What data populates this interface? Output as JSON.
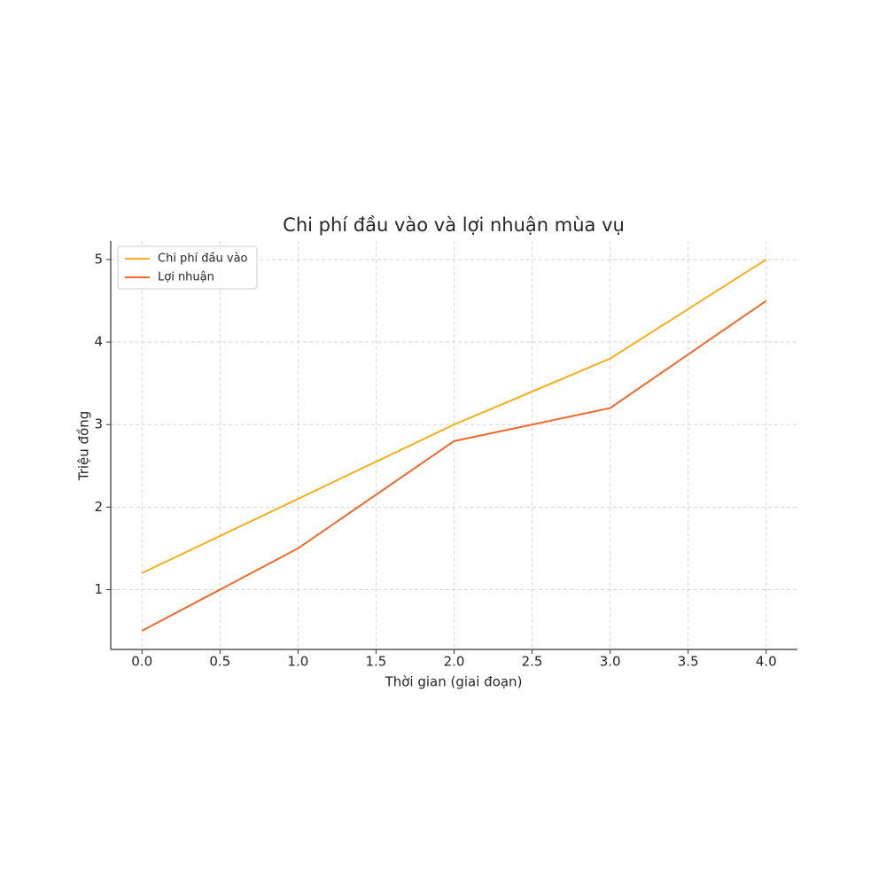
{
  "chart_data": {
    "type": "line",
    "title": "Chi phí đầu vào và lợi nhuận mùa vụ",
    "x_label": "Thời gian (giai đoạn)",
    "y_label": "Triệu đồng",
    "x": [
      0,
      1,
      2,
      3,
      4
    ],
    "series": [
      {
        "name": "Chi phí đầu vào",
        "color": "#f5b01a",
        "values": [
          1.2,
          2.1,
          3.0,
          3.8,
          5.0
        ]
      },
      {
        "name": "Lợi nhuận",
        "color": "#ef6a2c",
        "values": [
          0.5,
          1.5,
          2.8,
          3.2,
          4.5
        ]
      }
    ],
    "xlim": [
      -0.2,
      4.2
    ],
    "ylim": [
      0.275,
      5.225
    ],
    "xticks": [
      {
        "value": 0,
        "label": "0.0"
      },
      0.5,
      {
        "value": 1,
        "label": "1.0"
      },
      1.5,
      {
        "value": 2,
        "label": "2.0"
      },
      2.5,
      {
        "value": 3,
        "label": "3.0"
      },
      3.5,
      {
        "value": 4,
        "label": "4.0"
      }
    ],
    "yticks": [
      1,
      2,
      3,
      4,
      5
    ],
    "grid": true,
    "legend": "upper-left"
  }
}
